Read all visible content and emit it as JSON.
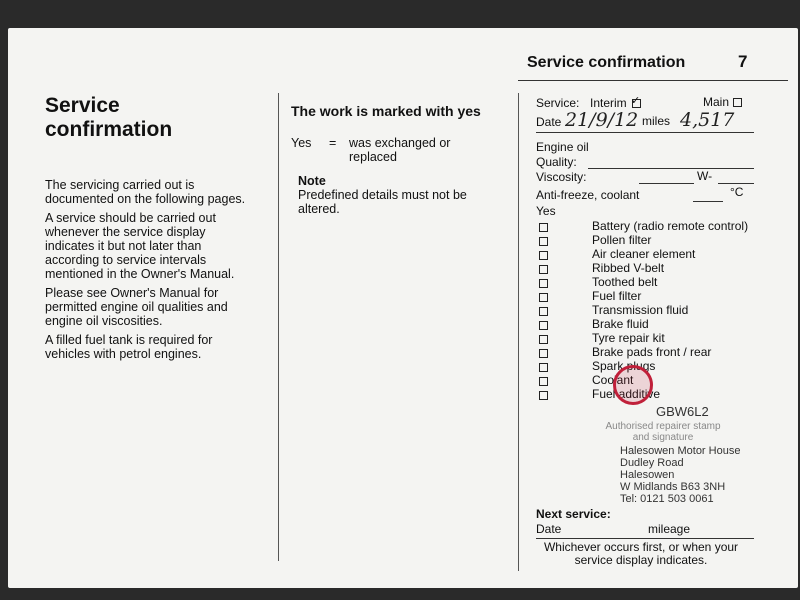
{
  "header": {
    "title": "Service confirmation",
    "page_number": "7"
  },
  "left": {
    "title_line1": "Service",
    "title_line2": "confirmation",
    "paragraphs": [
      "The servicing carried out is documented on the following pages.",
      "A service should be carried out whenever the service display indicates it but not later than according to service intervals mentioned in the Owner's Manual.",
      "Please see Owner's Manual for permitted engine oil qualities and engine oil viscosities.",
      "A filled fuel tank is required for vehicles with petrol engines."
    ]
  },
  "middle": {
    "title": "The work is marked with yes",
    "yes_label": "Yes",
    "equals": "=",
    "yes_meaning": "was exchanged or replaced",
    "note_title": "Note",
    "note_text": "Predefined details must not be altered."
  },
  "form": {
    "service_label": "Service:",
    "interim_label": "Interim",
    "main_label": "Main",
    "interim_checked": true,
    "main_checked": false,
    "date_label": "Date",
    "date_value": "21/9/12",
    "miles_label": "miles",
    "miles_value": "4,517",
    "engine_oil_label": "Engine oil",
    "quality_label": "Quality:",
    "viscosity_label": "Viscosity:",
    "w_label": "W-",
    "antifreeze_label": "Anti-freeze, coolant",
    "celsius_label": "°C",
    "yes_label": "Yes",
    "items": [
      "Battery (radio remote control)",
      "Pollen filter",
      "Air cleaner element",
      "Ribbed V-belt",
      "Toothed belt",
      "Fuel filter",
      "Transmission fluid",
      "Brake fluid",
      "Tyre repair kit",
      "Brake pads front / rear",
      "Spark plugs",
      "Coolant",
      "Fuel additive"
    ],
    "stamp_caption": "Authorised repairer stamp and signature",
    "stamp_code": "GBW6L2",
    "stamp_lines": [
      "Halesowen Motor House",
      "Dudley Road",
      "Halesowen",
      "W Midlands  B63 3NH",
      "Tel: 0121 503 0061"
    ],
    "next_service_label": "Next service:",
    "next_date_label": "Date",
    "next_mileage_label": "mileage",
    "footer": "Whichever occurs first, or when your service display indicates.",
    "stamp_color": "#c0203a"
  }
}
